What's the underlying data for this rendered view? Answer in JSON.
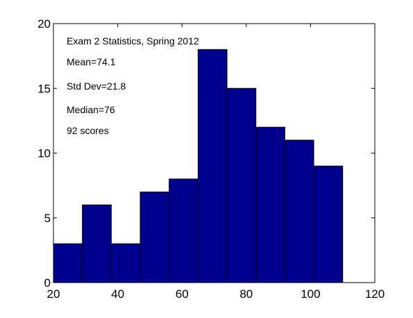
{
  "chart_data": {
    "type": "bar",
    "subtype": "histogram",
    "bin_edges": [
      20,
      29,
      38,
      47,
      56,
      65,
      74,
      83,
      92,
      101,
      110
    ],
    "values": [
      3,
      6,
      3,
      7,
      8,
      18,
      15,
      12,
      11,
      9
    ],
    "xlim": [
      20,
      120
    ],
    "ylim": [
      0,
      20
    ],
    "xticks": [
      20,
      40,
      60,
      80,
      100,
      120
    ],
    "yticks": [
      0,
      5,
      10,
      15,
      20
    ],
    "grid": false,
    "bar_color": "#00008f",
    "annotations": [
      "Exam 2 Statistics, Spring 2012",
      "Mean=74.1",
      "Std Dev=21.8",
      "Median=76",
      "92 scores"
    ]
  }
}
